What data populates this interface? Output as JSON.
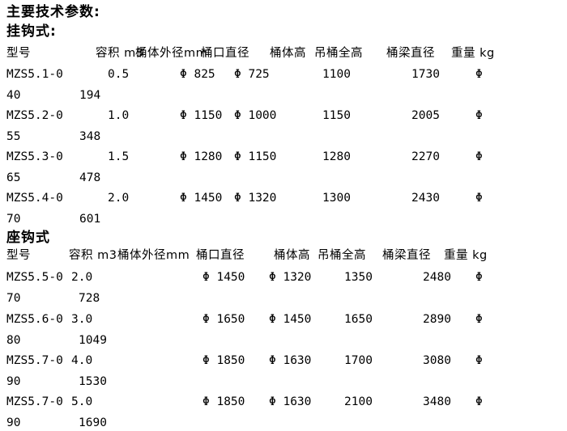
{
  "page": {
    "title": "主要技术参数:"
  },
  "sections": [
    {
      "title": "挂钩式:",
      "columns": [
        "型号",
        "容积 m3",
        "桶体外径mm",
        "桶口直径",
        "桶体高",
        "吊桶全高",
        "桶梁直径",
        "重量 kg"
      ],
      "rows": [
        {
          "main": [
            "MZS5.1-0",
            "0.5",
            "Φ 825",
            "Φ 725",
            "1100",
            "1730",
            "Φ"
          ],
          "cont": [
            "40",
            "194"
          ]
        },
        {
          "main": [
            "MZS5.2-0",
            "1.0",
            "Φ 1150",
            "Φ 1000",
            "1150",
            "2005",
            "Φ"
          ],
          "cont": [
            "55",
            "348"
          ]
        },
        {
          "main": [
            "MZS5.3-0",
            "1.5",
            "Φ 1280",
            "Φ 1150",
            "1280",
            "2270",
            "Φ"
          ],
          "cont": [
            "65",
            "478"
          ]
        },
        {
          "main": [
            "MZS5.4-0",
            "2.0",
            "Φ 1450",
            "Φ 1320",
            "1300",
            "2430",
            "Φ"
          ],
          "cont": [
            "70",
            "601"
          ]
        }
      ]
    },
    {
      "title": "座钩式",
      "columns": [
        "型号",
        "容积 m3",
        "桶体外径mm",
        "桶口直径",
        "桶体高",
        "吊桶全高",
        "桶梁直径",
        "重量 kg"
      ],
      "rows": [
        {
          "main": [
            "MZS5.5-0",
            "2.0",
            "Φ 1450",
            "Φ 1320",
            "1350",
            "2480",
            "Φ"
          ],
          "cont": [
            "70",
            "728"
          ]
        },
        {
          "main": [
            "MZS5.6-0",
            "3.0",
            "Φ 1650",
            "Φ 1450",
            "1650",
            "2890",
            "Φ"
          ],
          "cont": [
            "80",
            "1049"
          ]
        },
        {
          "main": [
            "MZS5.7-0",
            "4.0",
            "Φ 1850",
            "Φ 1630",
            "1700",
            "3080",
            "Φ"
          ],
          "cont": [
            "90",
            "1530"
          ]
        },
        {
          "main": [
            "MZS5.7-0",
            "5.0",
            "Φ 1850",
            "Φ 1630",
            "2100",
            "3480",
            "Φ"
          ],
          "cont": [
            "90",
            "1690"
          ]
        }
      ]
    }
  ]
}
